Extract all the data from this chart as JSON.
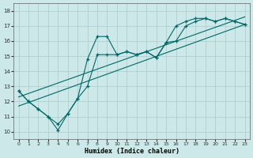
{
  "xlabel": "Humidex (Indice chaleur)",
  "xlim": [
    -0.5,
    23.5
  ],
  "ylim": [
    9.5,
    18.5
  ],
  "xticks": [
    0,
    1,
    2,
    3,
    4,
    5,
    6,
    7,
    8,
    9,
    10,
    11,
    12,
    13,
    14,
    15,
    16,
    17,
    18,
    19,
    20,
    21,
    22,
    23
  ],
  "yticks": [
    10,
    11,
    12,
    13,
    14,
    15,
    16,
    17,
    18
  ],
  "bg_color": "#cce8e8",
  "line_color": "#006868",
  "grid_color": "#aacccc",
  "line1_x": [
    0,
    1,
    2,
    3,
    4,
    5,
    6,
    7,
    8,
    9,
    10,
    11,
    12,
    13,
    14,
    15,
    16,
    17,
    18,
    19,
    20,
    21,
    22,
    23
  ],
  "line1_y": [
    12.7,
    12.0,
    11.5,
    11.0,
    10.5,
    11.2,
    12.2,
    14.8,
    16.3,
    16.3,
    15.1,
    15.3,
    15.1,
    15.3,
    14.9,
    15.9,
    17.0,
    17.3,
    17.5,
    17.5,
    17.3,
    17.5,
    17.3,
    17.1
  ],
  "line2_x": [
    0,
    1,
    2,
    3,
    4,
    5,
    6,
    7,
    8,
    9,
    10,
    11,
    12,
    13,
    14,
    15,
    16,
    17,
    18,
    19,
    20,
    21,
    22,
    23
  ],
  "line2_y": [
    12.7,
    12.0,
    11.5,
    11.0,
    10.1,
    11.2,
    12.2,
    13.0,
    15.1,
    15.1,
    15.1,
    15.3,
    15.1,
    15.3,
    14.9,
    15.9,
    16.0,
    17.0,
    17.3,
    17.5,
    17.3,
    17.5,
    17.3,
    17.1
  ],
  "line3_x": [
    0,
    23
  ],
  "line3_y": [
    11.7,
    17.1
  ],
  "line4_x": [
    0,
    23
  ],
  "line4_y": [
    12.3,
    17.6
  ]
}
